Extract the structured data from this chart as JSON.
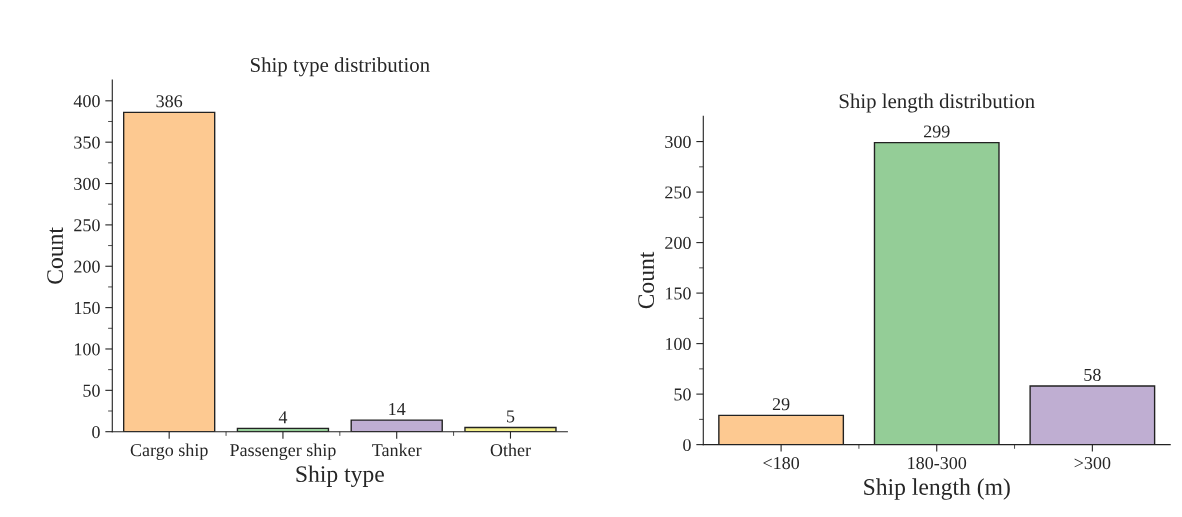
{
  "chart_data": [
    {
      "type": "bar",
      "title": "Ship type distribution",
      "xlabel": "Ship type",
      "ylabel": "Count",
      "categories": [
        "Cargo ship",
        "Passenger ship",
        "Tanker",
        "Other"
      ],
      "values": [
        386,
        4,
        14,
        5
      ],
      "colors": [
        "#fdc991",
        "#94cd97",
        "#bfaed2",
        "#f4f08c"
      ],
      "ylim": [
        0,
        425
      ],
      "yticks": [
        0,
        50,
        100,
        150,
        200,
        250,
        300,
        350,
        400
      ],
      "data_labels": true,
      "grid": false
    },
    {
      "type": "bar",
      "title": "Ship length distribution",
      "xlabel": "Ship length (m)",
      "ylabel": "Count",
      "categories": [
        "<180",
        "180-300",
        ">300"
      ],
      "values": [
        29,
        299,
        58
      ],
      "colors": [
        "#fdc991",
        "#94cd97",
        "#bfaed2"
      ],
      "ylim": [
        0,
        325
      ],
      "yticks": [
        0,
        50,
        100,
        150,
        200,
        250,
        300
      ],
      "data_labels": true,
      "grid": false
    }
  ]
}
